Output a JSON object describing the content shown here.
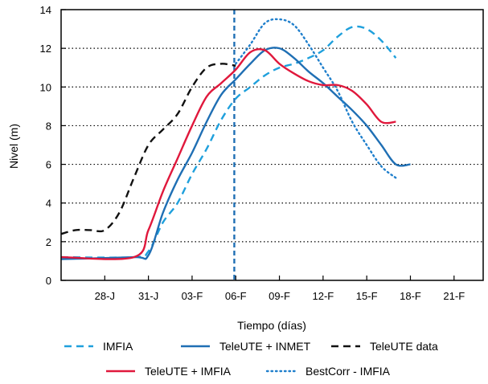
{
  "chart_data": {
    "type": "line",
    "xlabel": "Tiempo (días)",
    "ylabel": "Nivel (m)",
    "x_ticks": [
      "28-J",
      "31-J",
      "03-F",
      "06-F",
      "09-F",
      "12-F",
      "15-F",
      "18-F",
      "21-F"
    ],
    "x_tick_values": [
      28,
      31,
      34,
      37,
      40,
      43,
      46,
      49,
      52
    ],
    "xlim": [
      25,
      54
    ],
    "ylim": [
      0,
      14
    ],
    "y_ticks": [
      0,
      2,
      4,
      6,
      8,
      10,
      12,
      14
    ],
    "grid": "horizontal dotted",
    "vline_x": 36.9,
    "legend_placement": "bottom",
    "series": [
      {
        "name": "IMFIA",
        "color": "#1fa0dc",
        "dash": "dashed",
        "x": [
          25,
          30,
          31,
          32,
          33,
          34,
          35,
          36,
          37,
          38,
          39,
          40,
          41,
          42,
          43,
          44,
          45,
          46,
          47,
          48
        ],
        "y": [
          1.2,
          1.2,
          1.5,
          3.0,
          4.0,
          5.5,
          6.8,
          8.3,
          9.4,
          10.0,
          10.6,
          11.0,
          11.2,
          11.5,
          11.9,
          12.6,
          13.1,
          13.0,
          12.4,
          11.5
        ]
      },
      {
        "name": "TeleUTE + INMET",
        "color": "#1f6fb4",
        "dash": "solid",
        "x": [
          25,
          30,
          31,
          32,
          33,
          34,
          35,
          36,
          37,
          38,
          39,
          40,
          41,
          42,
          43,
          44,
          45,
          46,
          47,
          48,
          49
        ],
        "y": [
          1.1,
          1.2,
          1.3,
          3.5,
          5.2,
          6.6,
          8.2,
          9.6,
          10.4,
          11.2,
          11.9,
          12.0,
          11.5,
          10.8,
          10.2,
          9.5,
          8.8,
          8.0,
          7.0,
          6.0,
          6.0
        ]
      },
      {
        "name": "TeleUTE data",
        "color": "#111111",
        "dash": "dashed",
        "x": [
          25,
          26,
          27,
          28,
          29,
          30,
          31,
          32,
          33,
          34,
          35,
          36,
          37
        ],
        "y": [
          2.4,
          2.6,
          2.6,
          2.6,
          3.5,
          5.3,
          7.0,
          7.8,
          8.6,
          10.0,
          11.0,
          11.2,
          11.1
        ]
      },
      {
        "name": "TeleUTE + IMFIA",
        "color": "#e0183c",
        "dash": "solid",
        "x": [
          25,
          30,
          31,
          32,
          33,
          34,
          35,
          36,
          37,
          38,
          39,
          40,
          41,
          42,
          43,
          44,
          45,
          46,
          47,
          48
        ],
        "y": [
          1.2,
          1.2,
          2.6,
          4.6,
          6.3,
          8.0,
          9.5,
          10.2,
          10.9,
          11.8,
          11.9,
          11.2,
          10.7,
          10.3,
          10.1,
          10.1,
          9.8,
          9.1,
          8.2,
          8.2
        ]
      },
      {
        "name": "BestCorr - IMFIA",
        "color": "#1f7fcc",
        "dash": "dotted",
        "x": [
          37,
          38,
          39,
          40,
          41,
          42,
          43,
          44,
          45,
          46,
          47,
          48
        ],
        "y": [
          11.2,
          12.2,
          13.3,
          13.5,
          13.2,
          12.2,
          11.0,
          9.8,
          8.2,
          7.0,
          5.9,
          5.3
        ]
      }
    ]
  }
}
